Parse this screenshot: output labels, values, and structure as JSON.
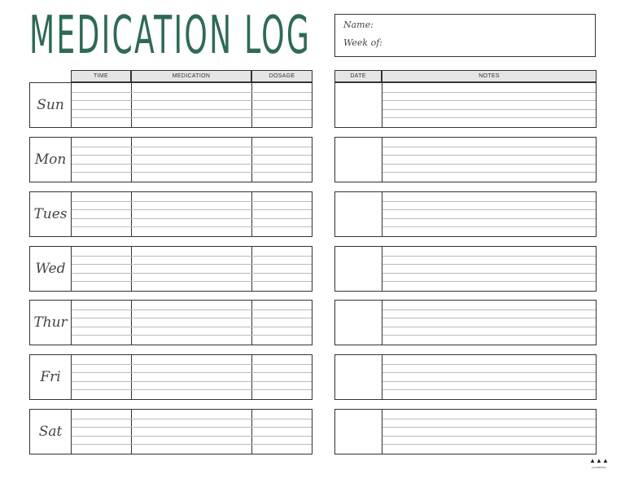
{
  "title": "MEDICATION LOG",
  "header_box": {
    "name_label": "Name:",
    "week_label": "Week of:"
  },
  "left_table": {
    "columns": [
      "TIME",
      "MEDICATION",
      "DOSAGE"
    ]
  },
  "right_table": {
    "columns": [
      "DATE",
      "NOTES"
    ]
  },
  "days": [
    "Sun",
    "Mon",
    "Tues",
    "Wed",
    "Thur",
    "Fri",
    "Sat"
  ],
  "logo": {
    "text": "printables",
    "mark": "▲▲▲"
  },
  "colors": {
    "title": "#2e6a58",
    "header_fill": "#e4e5e7",
    "border": "#333333",
    "rule": "#bbbbbb"
  }
}
